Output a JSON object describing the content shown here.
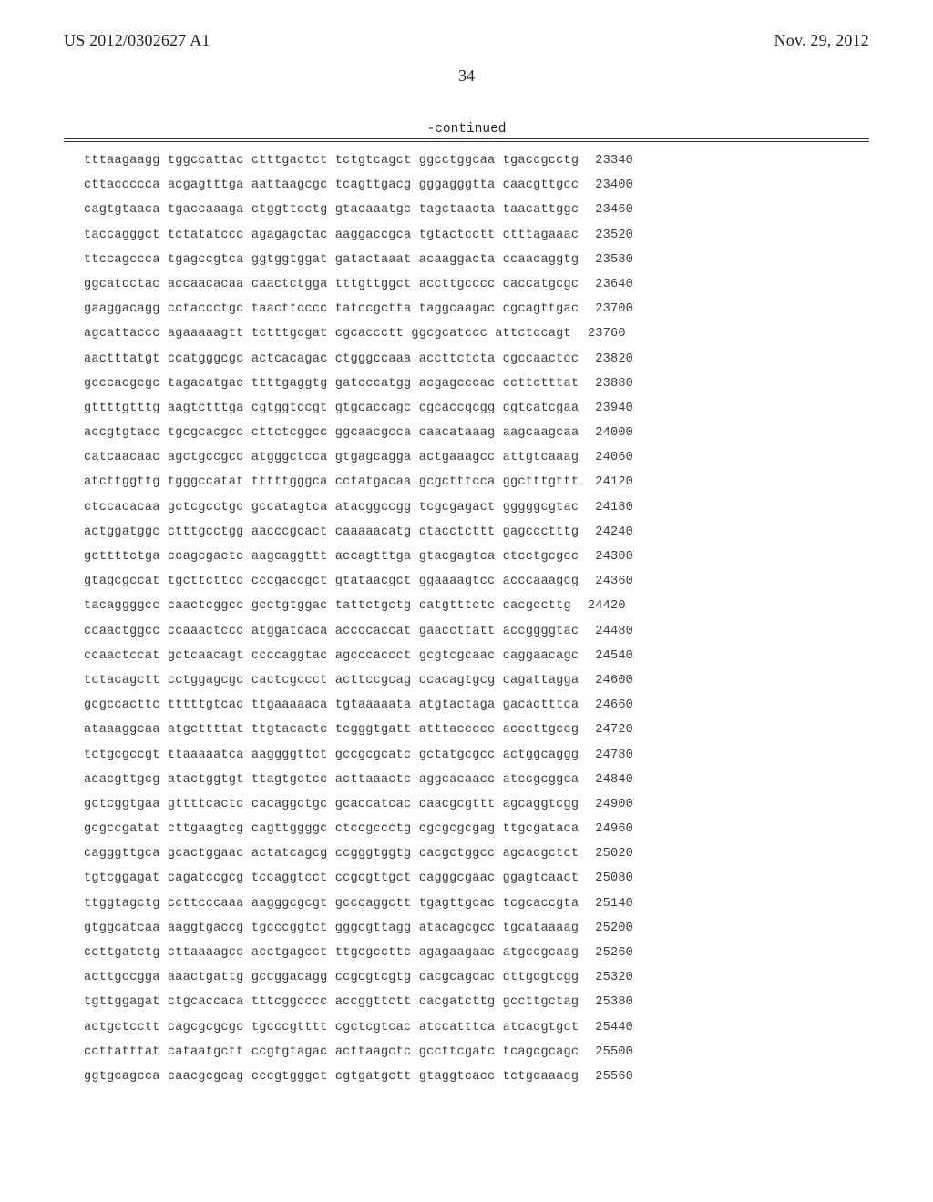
{
  "header": {
    "publication_number": "US 2012/0302627 A1",
    "publication_date": "Nov. 29, 2012"
  },
  "page_number": "34",
  "continued_label": "-continued",
  "sequence": {
    "group_gap": " ",
    "rows": [
      {
        "groups": [
          "tttaagaagg",
          "tggccattac",
          "ctttgactct",
          "tctgtcagct",
          "ggcctggcaa",
          "tgaccgcctg"
        ],
        "pos": "23340"
      },
      {
        "groups": [
          "cttaccccca",
          "acgagtttga",
          "aattaagcgc",
          "tcagttgacg",
          "gggagggtta",
          "caacgttgcc"
        ],
        "pos": "23400"
      },
      {
        "groups": [
          "cagtgtaaca",
          "tgaccaaaga",
          "ctggttcctg",
          "gtacaaatgc",
          "tagctaacta",
          "taacattggc"
        ],
        "pos": "23460"
      },
      {
        "groups": [
          "taccagggct",
          "tctatatccc",
          "agagagctac",
          "aaggaccgca",
          "tgtactcctt",
          "ctttagaaac"
        ],
        "pos": "23520"
      },
      {
        "groups": [
          "ttccagccca",
          "tgagccgtca",
          "ggtggtggat",
          "gatactaaat",
          "acaaggacta",
          "ccaacaggtg"
        ],
        "pos": "23580"
      },
      {
        "groups": [
          "ggcatcctac",
          "accaacacaa",
          "caactctgga",
          "tttgttggct",
          "accttgcccc",
          "caccatgcgc"
        ],
        "pos": "23640"
      },
      {
        "groups": [
          "gaaggacagg",
          "cctaccctgc",
          "taacttcccc",
          "tatccgctta",
          "taggcaagac",
          "cgcagttgac"
        ],
        "pos": "23700"
      },
      {
        "groups": [
          "agcattaccc",
          "agaaaaagtt",
          "tctttgcgat",
          "cgcaccctt",
          "ggcgcatccc",
          "attctccagt"
        ],
        "pos": "23760"
      },
      {
        "groups": [
          "aactttatgt",
          "ccatgggcgc",
          "actcacagac",
          "ctgggccaaa",
          "accttctcta",
          "cgccaactcc"
        ],
        "pos": "23820"
      },
      {
        "groups": [
          "gcccacgcgc",
          "tagacatgac",
          "ttttgaggtg",
          "gatcccatgg",
          "acgagcccac",
          "ccttctttat"
        ],
        "pos": "23880"
      },
      {
        "groups": [
          "gttttgtttg",
          "aagtctttga",
          "cgtggtccgt",
          "gtgcaccagc",
          "cgcaccgcgg",
          "cgtcatcgaa"
        ],
        "pos": "23940"
      },
      {
        "groups": [
          "accgtgtacc",
          "tgcgcacgcc",
          "cttctcggcc",
          "ggcaacgcca",
          "caacataaag",
          "aagcaagcaa"
        ],
        "pos": "24000"
      },
      {
        "groups": [
          "catcaacaac",
          "agctgccgcc",
          "atgggctcca",
          "gtgagcagga",
          "actgaaagcc",
          "attgtcaaag"
        ],
        "pos": "24060"
      },
      {
        "groups": [
          "atcttggttg",
          "tgggccatat",
          "tttttgggca",
          "cctatgacaa",
          "gcgctttcca",
          "ggctttgttt"
        ],
        "pos": "24120"
      },
      {
        "groups": [
          "ctccacacaa",
          "gctcgcctgc",
          "gccatagtca",
          "atacggccgg",
          "tcgcgagact",
          "gggggcgtac"
        ],
        "pos": "24180"
      },
      {
        "groups": [
          "actggatggc",
          "ctttgcctgg",
          "aacccgcact",
          "caaaaacatg",
          "ctacctcttt",
          "gagccctttg"
        ],
        "pos": "24240"
      },
      {
        "groups": [
          "gcttttctga",
          "ccagcgactc",
          "aagcaggttt",
          "accagtttga",
          "gtacgagtca",
          "ctcctgcgcc"
        ],
        "pos": "24300"
      },
      {
        "groups": [
          "gtagcgccat",
          "tgcttcttcc",
          "cccgaccgct",
          "gtataacgct",
          "ggaaaagtcc",
          "acccaaagcg"
        ],
        "pos": "24360"
      },
      {
        "groups": [
          "tacaggggcc",
          "caactcggcc",
          "gcctgtggac",
          "tattctgctg",
          "catgtttctc",
          "cacgccttg"
        ],
        "pos": "24420"
      },
      {
        "groups": [
          "ccaactggcc",
          "ccaaactccc",
          "atggatcaca",
          "accccaccat",
          "gaaccttatt",
          "accggggtac"
        ],
        "pos": "24480"
      },
      {
        "groups": [
          "ccaactccat",
          "gctcaacagt",
          "ccccaggtac",
          "agcccaccct",
          "gcgtcgcaac",
          "caggaacagc"
        ],
        "pos": "24540"
      },
      {
        "groups": [
          "tctacagctt",
          "cctggagcgc",
          "cactcgccct",
          "acttccgcag",
          "ccacagtgcg",
          "cagattagga"
        ],
        "pos": "24600"
      },
      {
        "groups": [
          "gcgccacttc",
          "tttttgtcac",
          "ttgaaaaaca",
          "tgtaaaaata",
          "atgtactaga",
          "gacactttca"
        ],
        "pos": "24660"
      },
      {
        "groups": [
          "ataaaggcaa",
          "atgcttttat",
          "ttgtacactc",
          "tcgggtgatt",
          "atttaccccc",
          "acccttgccg"
        ],
        "pos": "24720"
      },
      {
        "groups": [
          "tctgcgccgt",
          "ttaaaaatca",
          "aaggggttct",
          "gccgcgcatc",
          "gctatgcgcc",
          "actggcaggg"
        ],
        "pos": "24780"
      },
      {
        "groups": [
          "acacgttgcg",
          "atactggtgt",
          "ttagtgctcc",
          "acttaaactc",
          "aggcacaacc",
          "atccgcggca"
        ],
        "pos": "24840"
      },
      {
        "groups": [
          "gctcggtgaa",
          "gttttcactc",
          "cacaggctgc",
          "gcaccatcac",
          "caacgcgttt",
          "agcaggtcgg"
        ],
        "pos": "24900"
      },
      {
        "groups": [
          "gcgccgatat",
          "cttgaagtcg",
          "cagttggggc",
          "ctccgccctg",
          "cgcgcgcgag",
          "ttgcgataca"
        ],
        "pos": "24960"
      },
      {
        "groups": [
          "cagggttgca",
          "gcactggaac",
          "actatcagcg",
          "ccgggtggtg",
          "cacgctggcc",
          "agcacgctct"
        ],
        "pos": "25020"
      },
      {
        "groups": [
          "tgtcggagat",
          "cagatccgcg",
          "tccaggtcct",
          "ccgcgttgct",
          "cagggcgaac",
          "ggagtcaact"
        ],
        "pos": "25080"
      },
      {
        "groups": [
          "ttggtagctg",
          "ccttcccaaa",
          "aagggcgcgt",
          "gcccaggctt",
          "tgagttgcac",
          "tcgcaccgta"
        ],
        "pos": "25140"
      },
      {
        "groups": [
          "gtggcatcaa",
          "aaggtgaccg",
          "tgcccggtct",
          "gggcgttagg",
          "atacagcgcc",
          "tgcataaaag"
        ],
        "pos": "25200"
      },
      {
        "groups": [
          "ccttgatctg",
          "cttaaaagcc",
          "acctgagcct",
          "ttgcgccttc",
          "agagaagaac",
          "atgccgcaag"
        ],
        "pos": "25260"
      },
      {
        "groups": [
          "acttgccgga",
          "aaactgattg",
          "gccggacagg",
          "ccgcgtcgtg",
          "cacgcagcac",
          "cttgcgtcgg"
        ],
        "pos": "25320"
      },
      {
        "groups": [
          "tgttggagat",
          "ctgcaccaca",
          "tttcggcccc",
          "accggttctt",
          "cacgatcttg",
          "gccttgctag"
        ],
        "pos": "25380"
      },
      {
        "groups": [
          "actgctcctt",
          "cagcgcgcgc",
          "tgcccgtttt",
          "cgctcgtcac",
          "atccatttca",
          "atcacgtgct"
        ],
        "pos": "25440"
      },
      {
        "groups": [
          "ccttatttat",
          "cataatgctt",
          "ccgtgtagac",
          "acttaagctc",
          "gccttcgatc",
          "tcagcgcagc"
        ],
        "pos": "25500"
      },
      {
        "groups": [
          "ggtgcagcca",
          "caacgcgcag",
          "cccgtgggct",
          "cgtgatgctt",
          "gtaggtcacc",
          "tctgcaaacg"
        ],
        "pos": "25560"
      }
    ]
  }
}
